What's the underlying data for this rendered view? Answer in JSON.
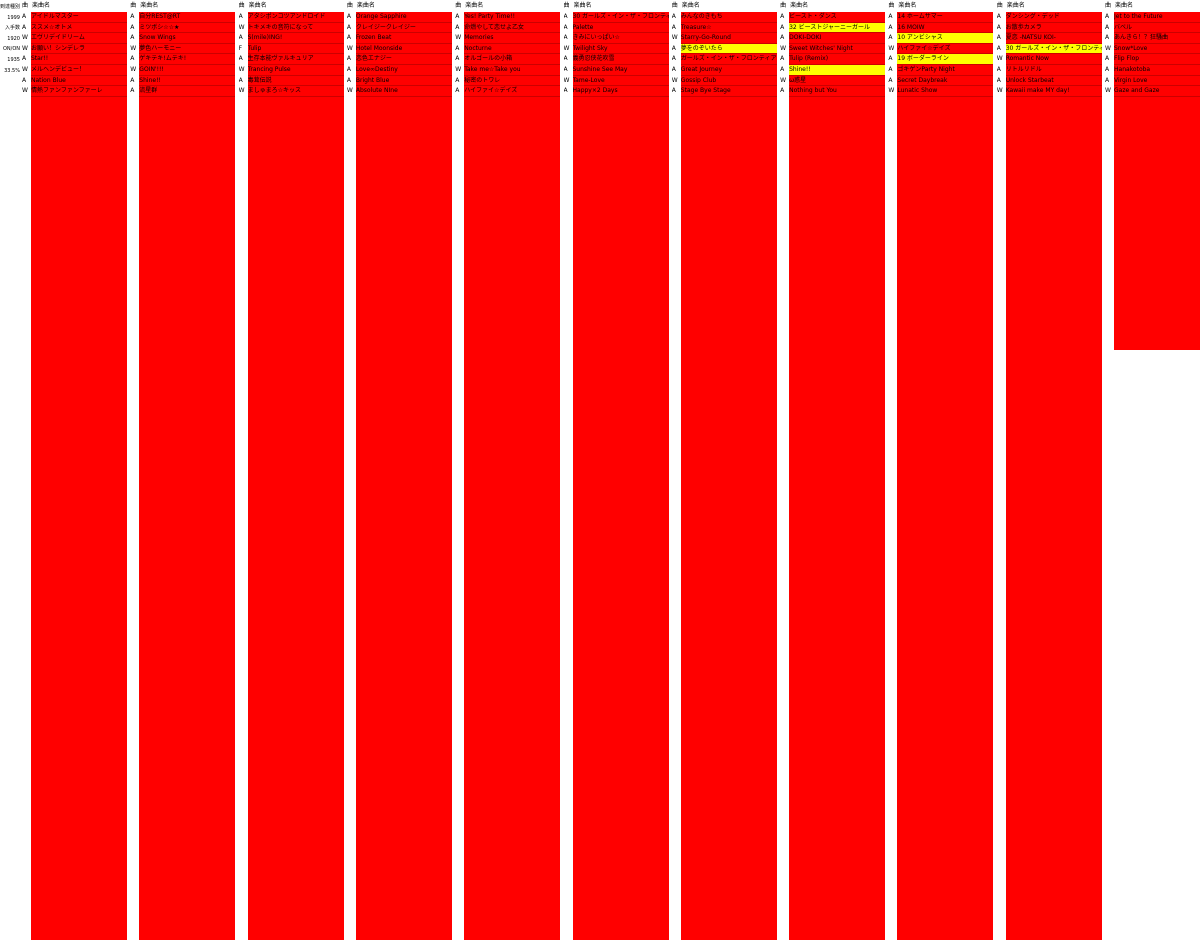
{
  "sheet": {
    "cell_color": "#ff0000",
    "highlight_color": "#ffff00",
    "summary": [
      "到達種別",
      "1999",
      "入手数",
      "1920",
      "ON/ON",
      "1935",
      "33.5%"
    ],
    "columns": [
      {
        "header": [
          "曲",
          "楽曲名"
        ],
        "rows": [
          [
            "A",
            "アイドルマスター"
          ],
          [
            "A",
            "ススメ☆オトメ"
          ],
          [
            "W",
            "エヴリデイドリーム"
          ],
          [
            "W",
            "お願い！シンデレラ"
          ],
          [
            "A",
            "Star!!"
          ],
          [
            "W",
            "メルヘンデビュー！"
          ],
          [
            "A",
            "Nation Blue"
          ],
          [
            "W",
            "情熱ファンファンファーレ"
          ]
        ],
        "highlight": []
      },
      {
        "header": [
          "曲",
          "楽曲名"
        ],
        "rows": [
          [
            "A",
            "自分REST@RT"
          ],
          [
            "A",
            "ミツボシ☆☆★"
          ],
          [
            "A",
            "Snow Wings"
          ],
          [
            "W",
            "夢色ハーモニー"
          ],
          [
            "A",
            "ゲキテキ!ムテキ!"
          ],
          [
            "W",
            "GOIN'!!!"
          ],
          [
            "A",
            "Shine!!"
          ],
          [
            "A",
            "流星群"
          ]
        ],
        "highlight": []
      },
      {
        "header": [
          "曲",
          "楽曲名"
        ],
        "rows": [
          [
            "A",
            "アタシポンコツアンドロイド"
          ],
          [
            "W",
            "トキメキの音符になって"
          ],
          [
            "A",
            "S(mile)ING!"
          ],
          [
            "F",
            "Tulip"
          ],
          [
            "A",
            "生存本能ヴァルキュリア"
          ],
          [
            "W",
            "Trancing Pulse"
          ],
          [
            "A",
            "毒茸伝説"
          ],
          [
            "W",
            "ましゅまろ☆キッス"
          ]
        ],
        "highlight": []
      },
      {
        "header": [
          "曲",
          "楽曲名"
        ],
        "rows": [
          [
            "A",
            "Orange Sapphire"
          ],
          [
            "A",
            "クレイジークレイジー"
          ],
          [
            "A",
            "Frozen Beat"
          ],
          [
            "W",
            "Hotel Moonside"
          ],
          [
            "A",
            "恋色エナジー"
          ],
          [
            "A",
            "Love∞Destiny"
          ],
          [
            "A",
            "Bright Blue"
          ],
          [
            "W",
            "Absolute NIne"
          ]
        ],
        "highlight": []
      },
      {
        "header": [
          "曲",
          "楽曲名"
        ],
        "rows": [
          [
            "A",
            "Yes! Party Time!!"
          ],
          [
            "A",
            "命燃やして恋せよ乙女"
          ],
          [
            "W",
            "Memories"
          ],
          [
            "A",
            "Nocturne"
          ],
          [
            "A",
            "オルゴールの小箱"
          ],
          [
            "W",
            "Take me☆Take you"
          ],
          [
            "A",
            "秘密のトワレ"
          ],
          [
            "A",
            "ハイファイ☆デイズ"
          ]
        ],
        "highlight": []
      },
      {
        "header": [
          "曲",
          "楽曲名"
        ],
        "rows": [
          [
            "A",
            "30 ガールズ・イン・ザ・フロンティア"
          ],
          [
            "A",
            "Palette"
          ],
          [
            "A",
            "きみにいっぱい☆"
          ],
          [
            "W",
            "Twilight Sky"
          ],
          [
            "A",
            "義勇忍侠花吹雪"
          ],
          [
            "A",
            "Sunshine See May"
          ],
          [
            "W",
            "Tame-Love"
          ],
          [
            "A",
            "Happy×2 Days"
          ]
        ],
        "highlight": []
      },
      {
        "header": [
          "曲",
          "楽曲名"
        ],
        "rows": [
          [
            "A",
            "みんなのきもち"
          ],
          [
            "A",
            "Treasure☆"
          ],
          [
            "W",
            "Starry-Go-Round"
          ],
          [
            "A",
            "夢をのぞいたら"
          ],
          [
            "A",
            "ガールズ・イン・ザ・フロンティア"
          ],
          [
            "A",
            "Great Journey"
          ],
          [
            "W",
            "Gossip Club"
          ],
          [
            "A",
            "Stage Bye Stage"
          ]
        ],
        "highlight": [
          3
        ]
      },
      {
        "header": [
          "曲",
          "楽曲名"
        ],
        "rows": [
          [
            "A",
            "ビースト・ダンス"
          ],
          [
            "A",
            "32 ビーストジャーニーガール"
          ],
          [
            "A",
            "DOKI-DOKI"
          ],
          [
            "W",
            "Sweet Witches' Night"
          ],
          [
            "A",
            "Tulip (Remix)"
          ],
          [
            "A",
            "Shine!!"
          ],
          [
            "W",
            "ω惑星"
          ],
          [
            "A",
            "Nothing but You"
          ]
        ],
        "highlight": [
          1,
          5
        ]
      },
      {
        "header": [
          "曲",
          "楽曲名"
        ],
        "rows": [
          [
            "A",
            "14 ホームサマー"
          ],
          [
            "A",
            "16 MOIW"
          ],
          [
            "A",
            "10 アンビシャス"
          ],
          [
            "W",
            "ハイファイ☆デイズ"
          ],
          [
            "A",
            "19 ボーダーライン"
          ],
          [
            "A",
            "ゴキゲンParty Night"
          ],
          [
            "A",
            "Secret Daybreak"
          ],
          [
            "W",
            "Lunatic Show"
          ]
        ],
        "highlight": [
          2,
          4
        ]
      },
      {
        "header": [
          "曲",
          "楽曲名"
        ],
        "rows": [
          [
            "A",
            "ダンシング・デッド"
          ],
          [
            "A",
            "お散歩カメラ"
          ],
          [
            "A",
            "夏恋 -NATSU KOI-"
          ],
          [
            "A",
            "30 ガールズ・イン・ザ・フロンティア"
          ],
          [
            "W",
            "Romantic Now"
          ],
          [
            "A",
            "リトルリドル"
          ],
          [
            "A",
            "Unlock Starbeat"
          ],
          [
            "W",
            "Kawaii make MY day!"
          ]
        ],
        "highlight": [
          3
        ]
      },
      {
        "header": [
          "曲",
          "楽曲名"
        ],
        "rows": [
          [
            "A",
            "Jet to the Future"
          ],
          [
            "A",
            "バベル"
          ],
          [
            "A",
            "あんきら！？狂騒曲"
          ],
          [
            "W",
            "Snow*Love"
          ],
          [
            "A",
            "Flip Flop"
          ],
          [
            "A",
            "Hanakotoba"
          ],
          [
            "A",
            "Virgin Love"
          ],
          [
            "W",
            "Gaze and Gaze"
          ]
        ],
        "highlight": []
      }
    ]
  }
}
